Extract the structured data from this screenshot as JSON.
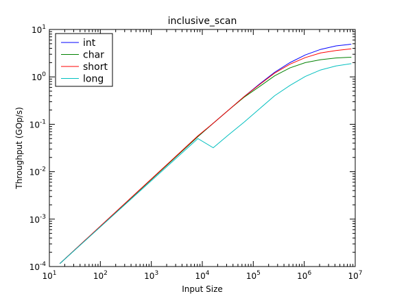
{
  "chart_data": {
    "type": "line",
    "title": "inclusive_scan",
    "xlabel": "Input Size",
    "ylabel": "Throughput (GOp/s)",
    "xscale": "log",
    "yscale": "log",
    "xlim": [
      10,
      10000000
    ],
    "ylim": [
      0.0001,
      10
    ],
    "grid": false,
    "legend_position": "top-left",
    "x_tick_labels": [
      {
        "base": "10",
        "exp": "1",
        "value": 10
      },
      {
        "base": "10",
        "exp": "2",
        "value": 100
      },
      {
        "base": "10",
        "exp": "3",
        "value": 1000
      },
      {
        "base": "10",
        "exp": "4",
        "value": 10000
      },
      {
        "base": "10",
        "exp": "5",
        "value": 100000
      },
      {
        "base": "10",
        "exp": "6",
        "value": 1000000
      },
      {
        "base": "10",
        "exp": "7",
        "value": 10000000
      }
    ],
    "y_tick_labels": [
      {
        "base": "10",
        "exp": "-4",
        "value": 0.0001
      },
      {
        "base": "10",
        "exp": "-3",
        "value": 0.001
      },
      {
        "base": "10",
        "exp": "-2",
        "value": 0.01
      },
      {
        "base": "10",
        "exp": "-1",
        "value": 0.1
      },
      {
        "base": "10",
        "exp": "0",
        "value": 1
      },
      {
        "base": "10",
        "exp": "1",
        "value": 10
      }
    ],
    "series": [
      {
        "name": "int",
        "color": "#0000ff",
        "x": [
          16,
          8192,
          16384,
          32768,
          65536,
          131072,
          262144,
          524288,
          1048576,
          2097152,
          4194304,
          8388608
        ],
        "y": [
          0.000115,
          0.055,
          0.105,
          0.2,
          0.38,
          0.7,
          1.25,
          2.0,
          2.9,
          3.8,
          4.5,
          4.9
        ]
      },
      {
        "name": "char",
        "color": "#008000",
        "x": [
          16,
          8192,
          16384,
          32768,
          65536,
          131072,
          262144,
          524288,
          1048576,
          2097152,
          4194304,
          8388608
        ],
        "y": [
          0.000115,
          0.055,
          0.105,
          0.2,
          0.37,
          0.62,
          1.05,
          1.55,
          2.0,
          2.3,
          2.5,
          2.6
        ]
      },
      {
        "name": "short",
        "color": "#ff0000",
        "x": [
          16,
          8192,
          16384,
          32768,
          65536,
          131072,
          262144,
          524288,
          1048576,
          2097152,
          4194304,
          8388608
        ],
        "y": [
          0.000115,
          0.057,
          0.105,
          0.2,
          0.38,
          0.68,
          1.2,
          1.85,
          2.55,
          3.2,
          3.6,
          3.9
        ]
      },
      {
        "name": "long",
        "color": "#00bfbf",
        "x": [
          16,
          8192,
          16384,
          32768,
          65536,
          131072,
          262144,
          524288,
          1048576,
          2097152,
          4194304,
          8388608
        ],
        "y": [
          0.000115,
          0.05,
          0.032,
          0.06,
          0.11,
          0.21,
          0.4,
          0.66,
          1.02,
          1.4,
          1.7,
          1.9
        ]
      }
    ]
  }
}
